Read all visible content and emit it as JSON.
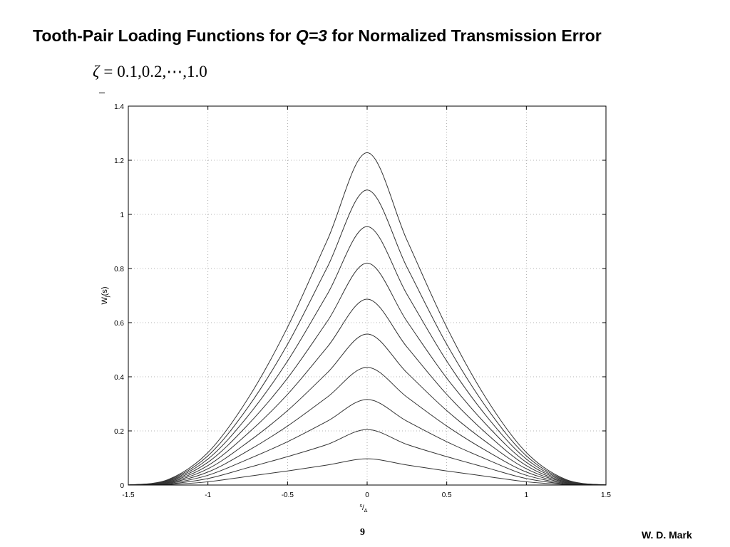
{
  "slide": {
    "title_prefix": "Tooth-Pair Loading Functions for ",
    "title_q": "Q=3",
    "title_suffix": " for Normalized Transmission Error",
    "zeta_symbol": "ζ",
    "zeta_equals": "=",
    "zeta_values": "0.1,0.2,⋯,1.0",
    "page_number": "9",
    "author": "W. D. Mark"
  },
  "chart_data": {
    "type": "line",
    "title": "",
    "xlabel": "s/Δ",
    "ylabel": "Wj(s)",
    "xlim": [
      -1.5,
      1.5
    ],
    "ylim": [
      0,
      1.4
    ],
    "grid": true,
    "grid_style": "dotted",
    "line_color": "#333333",
    "x_ticks": [
      "-1.5",
      "-1",
      "-0.5",
      "0",
      "0.5",
      "1",
      "1.5"
    ],
    "y_ticks": [
      "0",
      "0.2",
      "0.4",
      "0.6",
      "0.8",
      "1",
      "1.2",
      "1.4"
    ],
    "series_note": "one curve per zeta = 0.1 ... 1.0; lowest curve zeta = 0.1",
    "series": [
      {
        "zeta": 0.1,
        "x": [
          -1.5,
          -1.25,
          -1,
          -0.75,
          -0.5,
          -0.25,
          0,
          0.25,
          0.5,
          0.75,
          1,
          1.25,
          1.5
        ],
        "values": [
          0,
          0.002,
          0.012,
          0.032,
          0.052,
          0.074,
          0.097,
          0.074,
          0.052,
          0.032,
          0.012,
          0.002,
          0
        ]
      },
      {
        "zeta": 0.2,
        "x": [
          -1.5,
          -1.25,
          -1,
          -0.75,
          -0.5,
          -0.25,
          0,
          0.25,
          0.5,
          0.75,
          1,
          1.25,
          1.5
        ],
        "values": [
          0,
          0.004,
          0.024,
          0.064,
          0.105,
          0.15,
          0.205,
          0.15,
          0.105,
          0.064,
          0.024,
          0.004,
          0
        ]
      },
      {
        "zeta": 0.3,
        "x": [
          -1.5,
          -1.25,
          -1,
          -0.75,
          -0.5,
          -0.25,
          0,
          0.25,
          0.5,
          0.75,
          1,
          1.25,
          1.5
        ],
        "values": [
          0,
          0.006,
          0.036,
          0.095,
          0.16,
          0.236,
          0.316,
          0.236,
          0.16,
          0.095,
          0.036,
          0.006,
          0
        ]
      },
      {
        "zeta": 0.4,
        "x": [
          -1.5,
          -1.25,
          -1,
          -0.75,
          -0.5,
          -0.25,
          0,
          0.25,
          0.5,
          0.75,
          1,
          1.25,
          1.5
        ],
        "values": [
          0,
          0.008,
          0.048,
          0.126,
          0.218,
          0.325,
          0.435,
          0.325,
          0.218,
          0.126,
          0.048,
          0.008,
          0
        ]
      },
      {
        "zeta": 0.5,
        "x": [
          -1.5,
          -1.25,
          -1,
          -0.75,
          -0.5,
          -0.25,
          0,
          0.25,
          0.5,
          0.75,
          1,
          1.25,
          1.5
        ],
        "values": [
          0,
          0.01,
          0.06,
          0.158,
          0.275,
          0.415,
          0.558,
          0.415,
          0.275,
          0.158,
          0.06,
          0.01,
          0
        ]
      },
      {
        "zeta": 0.6,
        "x": [
          -1.5,
          -1.25,
          -1,
          -0.75,
          -0.5,
          -0.25,
          0,
          0.25,
          0.5,
          0.75,
          1,
          1.25,
          1.5
        ],
        "values": [
          0,
          0.012,
          0.072,
          0.19,
          0.335,
          0.51,
          0.687,
          0.51,
          0.335,
          0.19,
          0.072,
          0.012,
          0
        ]
      },
      {
        "zeta": 0.7,
        "x": [
          -1.5,
          -1.25,
          -1,
          -0.75,
          -0.5,
          -0.25,
          0,
          0.25,
          0.5,
          0.75,
          1,
          1.25,
          1.5
        ],
        "values": [
          0,
          0.014,
          0.084,
          0.222,
          0.395,
          0.605,
          0.82,
          0.605,
          0.395,
          0.222,
          0.084,
          0.014,
          0
        ]
      },
      {
        "zeta": 0.8,
        "x": [
          -1.5,
          -1.25,
          -1,
          -0.75,
          -0.5,
          -0.25,
          0,
          0.25,
          0.5,
          0.75,
          1,
          1.25,
          1.5
        ],
        "values": [
          0,
          0.016,
          0.096,
          0.254,
          0.458,
          0.705,
          0.955,
          0.705,
          0.458,
          0.254,
          0.096,
          0.016,
          0
        ]
      },
      {
        "zeta": 0.9,
        "x": [
          -1.5,
          -1.25,
          -1,
          -0.75,
          -0.5,
          -0.25,
          0,
          0.25,
          0.5,
          0.75,
          1,
          1.25,
          1.5
        ],
        "values": [
          0,
          0.018,
          0.108,
          0.286,
          0.52,
          0.805,
          1.09,
          0.805,
          0.52,
          0.286,
          0.108,
          0.018,
          0
        ]
      },
      {
        "zeta": 1.0,
        "x": [
          -1.5,
          -1.25,
          -1,
          -0.75,
          -0.5,
          -0.25,
          0,
          0.25,
          0.5,
          0.75,
          1,
          1.25,
          1.5
        ],
        "values": [
          0,
          0.02,
          0.12,
          0.318,
          0.583,
          0.905,
          1.228,
          0.905,
          0.583,
          0.318,
          0.12,
          0.02,
          0
        ]
      }
    ]
  }
}
